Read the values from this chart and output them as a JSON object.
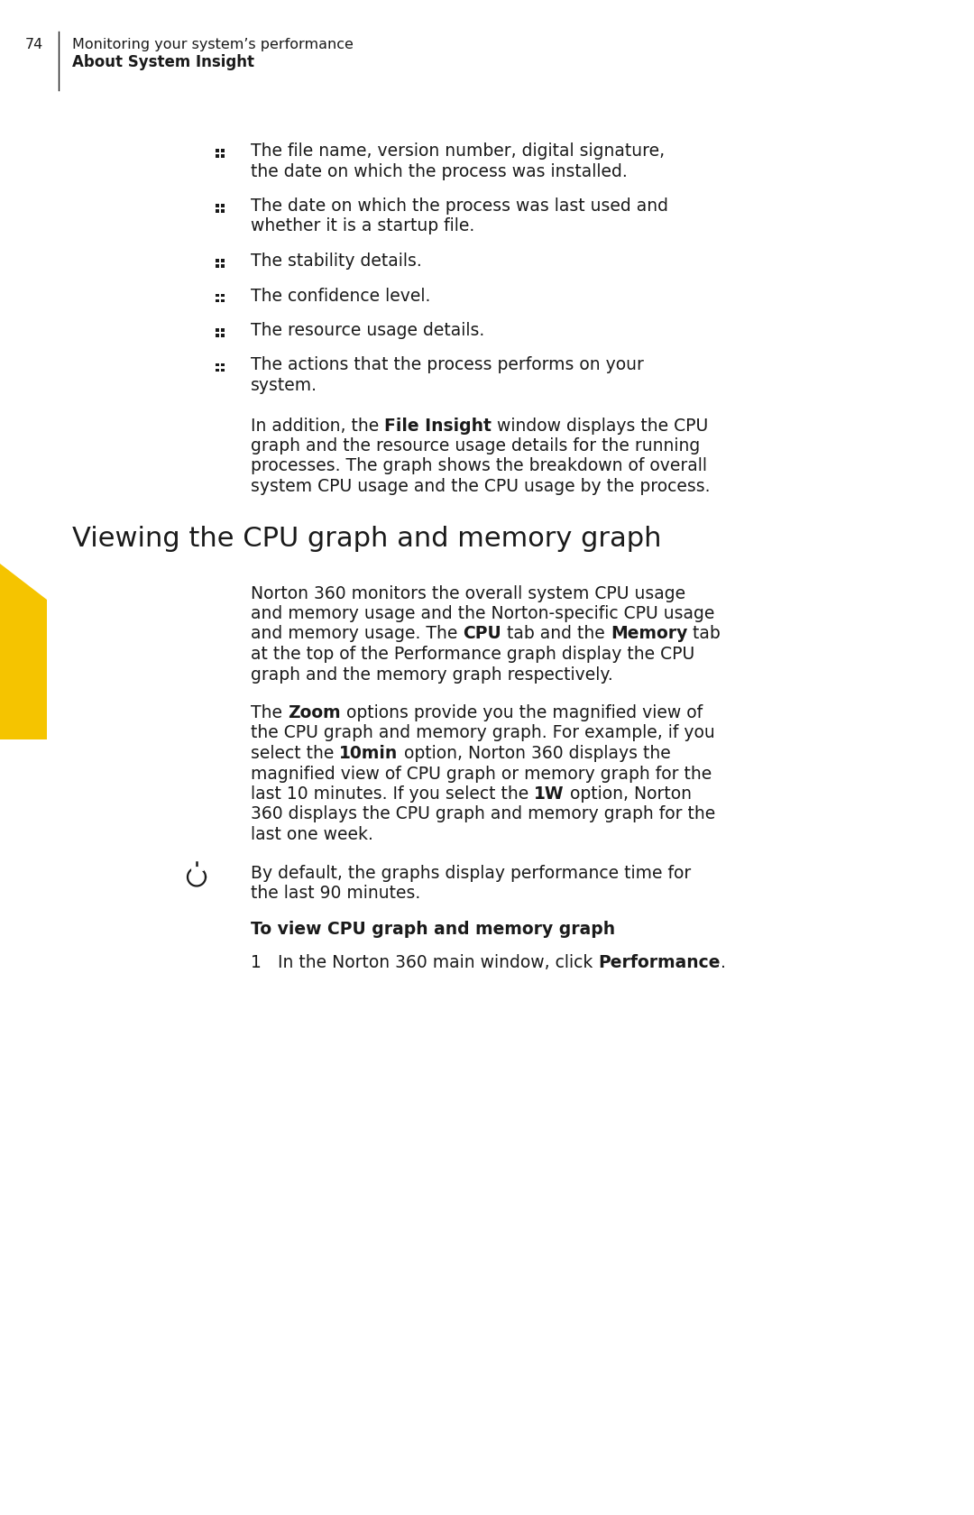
{
  "page_number": "74",
  "header_line1": "Monitoring your system’s performance",
  "header_line2": "About System Insight",
  "bg": "#ffffff",
  "tc": "#1a1a1a",
  "yc": "#F5C400",
  "bullet_lines": [
    [
      "The file name, version number, digital signature,",
      "the date on which the process was installed."
    ],
    [
      "The date on which the process was last used and",
      "whether it is a startup file."
    ],
    [
      "The stability details."
    ],
    [
      "The confidence level."
    ],
    [
      "The resource usage details."
    ],
    [
      "The actions that the process performs on your",
      "system."
    ]
  ],
  "para1_lines": [
    [
      {
        "t": "In addition, the ",
        "b": false
      },
      {
        "t": "File Insight",
        "b": true
      },
      {
        "t": " window displays the CPU",
        "b": false
      }
    ],
    [
      {
        "t": "graph and the resource usage details for the running",
        "b": false
      }
    ],
    [
      {
        "t": "processes. The graph shows the breakdown of overall",
        "b": false
      }
    ],
    [
      {
        "t": "system CPU usage and the CPU usage by the process.",
        "b": false
      }
    ]
  ],
  "section_heading": "Viewing the CPU graph and memory graph",
  "para2_lines": [
    [
      {
        "t": "Norton 360 monitors the overall system CPU usage",
        "b": false
      }
    ],
    [
      {
        "t": "and memory usage and the Norton-specific CPU usage",
        "b": false
      }
    ],
    [
      {
        "t": "and memory usage. The ",
        "b": false
      },
      {
        "t": "CPU",
        "b": true
      },
      {
        "t": " tab and the ",
        "b": false
      },
      {
        "t": "Memory",
        "b": true
      },
      {
        "t": " tab",
        "b": false
      }
    ],
    [
      {
        "t": "at the top of the Performance graph display the CPU",
        "b": false
      }
    ],
    [
      {
        "t": "graph and the memory graph respectively.",
        "b": false
      }
    ]
  ],
  "para3_lines": [
    [
      {
        "t": "The ",
        "b": false
      },
      {
        "t": "Zoom",
        "b": true
      },
      {
        "t": " options provide you the magnified view of",
        "b": false
      }
    ],
    [
      {
        "t": "the CPU graph and memory graph. For example, if you",
        "b": false
      }
    ],
    [
      {
        "t": "select the ",
        "b": false
      },
      {
        "t": "10min",
        "b": true
      },
      {
        "t": " option, Norton 360 displays the",
        "b": false
      }
    ],
    [
      {
        "t": "magnified view of CPU graph or memory graph for the",
        "b": false
      }
    ],
    [
      {
        "t": "last 10 minutes. If you select the ",
        "b": false
      },
      {
        "t": "1W",
        "b": true
      },
      {
        "t": " option, Norton",
        "b": false
      }
    ],
    [
      {
        "t": "360 displays the CPU graph and memory graph for the",
        "b": false
      }
    ],
    [
      {
        "t": "last one week.",
        "b": false
      }
    ]
  ],
  "note_lines": [
    [
      {
        "t": "By default, the graphs display performance time for",
        "b": false
      }
    ],
    [
      {
        "t": "the last 90 minutes.",
        "b": false
      }
    ]
  ],
  "subheading": "To view CPU graph and memory graph",
  "step1_line": [
    {
      "t": "1",
      "b": false
    },
    {
      "t": "   In the Norton 360 main window, click ",
      "b": false
    },
    {
      "t": "Performance",
      "b": true
    },
    {
      "t": ".",
      "b": false
    }
  ]
}
